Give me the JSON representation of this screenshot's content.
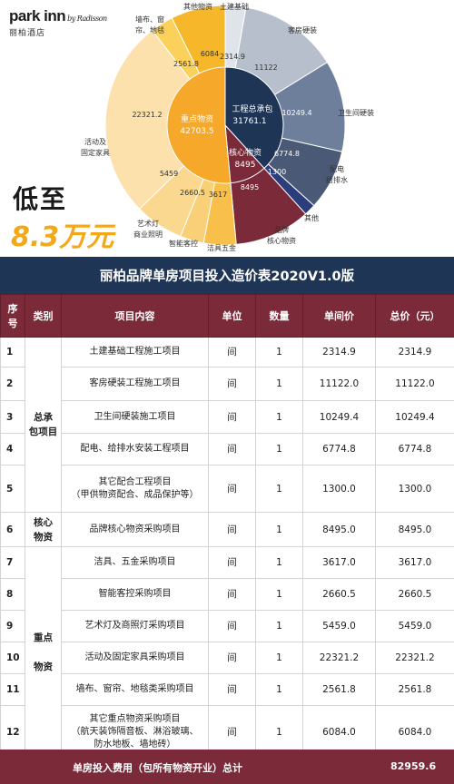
{
  "brand": {
    "logo_main": "park inn",
    "logo_sub": "by Radisson",
    "logo_cn": "丽柏酒店"
  },
  "promo": {
    "line1": "低至",
    "line2": "8.3万元"
  },
  "chart_data": {
    "type": "pie",
    "inner": [
      {
        "name": "工程总承包",
        "value": 31761.1,
        "color": "#1f3556"
      },
      {
        "name": "核心物资",
        "value": 8495,
        "color": "#7a2a39"
      },
      {
        "name": "重点物资",
        "value": 42703.5,
        "color": "#f6a82a"
      }
    ],
    "outer": [
      {
        "name": "土建基础",
        "value": 2314.9,
        "label": "2314.9",
        "color": "#dfe3ea"
      },
      {
        "name": "客房硬装",
        "value": 11122,
        "label": "11122",
        "color": "#b7bfcc"
      },
      {
        "name": "卫生间硬装",
        "value": 10249.4,
        "label": "10249.4",
        "color": "#6d7f9b"
      },
      {
        "name": "配电给排水",
        "value": 6774.8,
        "label": "6774.8",
        "color": "#4a5a76"
      },
      {
        "name": "其他",
        "value": 1300,
        "label": "1300",
        "color": "#2b3d7c"
      },
      {
        "name": "品牌核心物资",
        "value": 8495,
        "label": "8495",
        "color": "#7a2a39"
      },
      {
        "name": "洁具五金",
        "value": 3617,
        "label": "3617",
        "color": "#f8c04a"
      },
      {
        "name": "智能客控",
        "value": 2660.5,
        "label": "2660.5",
        "color": "#f9cf78"
      },
      {
        "name": "艺术灯商业照明",
        "value": 5459,
        "label": "5459",
        "color": "#fad88f"
      },
      {
        "name": "活动及固定家具",
        "value": 22321.2,
        "label": "22321.2",
        "color": "#fce1ad"
      },
      {
        "name": "墙布、窗帘、地毯",
        "value": 2561.8,
        "label": "2561.8",
        "color": "#fbd15c"
      },
      {
        "name": "其他物资",
        "value": 6084,
        "label": "6084",
        "color": "#f6b72a"
      }
    ],
    "labels": {
      "total_eng": "工程总承包",
      "total_eng_val": "31761.1",
      "core": "核心物资",
      "core_val": "8495",
      "key": "重点物资",
      "key_val": "42703.5",
      "cat_jichu": "土建基础",
      "cat_kefang": "客房硬装",
      "cat_wsj": "卫生间硬装",
      "cat_pd1": "配电",
      "cat_pd2": "给排水",
      "cat_qita": "其他",
      "cat_pp1": "品牌",
      "cat_pp2": "核心物资",
      "cat_jj": "洁具五金",
      "cat_zn": "智能客控",
      "cat_yd1": "艺术灯",
      "cat_yd2": "商业照明",
      "cat_jiaju1": "活动及",
      "cat_jiaju2": "固定家具",
      "cat_qb1": "墙布、窗",
      "cat_qb2": "帘、地毯",
      "cat_qtwz": "其他物资"
    }
  },
  "table": {
    "title": "丽柏品牌单房项目投入造价表2020V1.0版",
    "headers": {
      "no1": "序",
      "no2": "号",
      "category": "类别",
      "content": "项目内容",
      "unit": "单位",
      "qty": "数量",
      "price": "单间价",
      "total": "总价（元）"
    },
    "categories": {
      "c1a": "总承",
      "c1b": "包项目",
      "c2a": "核心",
      "c2b": "物资",
      "c3a": "重点",
      "c3b": "物资"
    },
    "rows": [
      {
        "no": "1",
        "item1": "土建基础工程施工项目",
        "unit": "间",
        "qty": "1",
        "price": "2314.9",
        "total": "2314.9"
      },
      {
        "no": "2",
        "item1": "客房硬装工程施工项目",
        "unit": "间",
        "qty": "1",
        "price": "11122.0",
        "total": "11122.0"
      },
      {
        "no": "3",
        "item1": "卫生间硬装施工项目",
        "unit": "间",
        "qty": "1",
        "price": "10249.4",
        "total": "10249.4"
      },
      {
        "no": "4",
        "item1": "配电、给排水安装工程项目",
        "unit": "间",
        "qty": "1",
        "price": "6774.8",
        "total": "6774.8"
      },
      {
        "no": "5",
        "item1": "其它配合工程项目",
        "item2": "（甲供物资配合、成品保护等）",
        "unit": "间",
        "qty": "1",
        "price": "1300.0",
        "total": "1300.0"
      },
      {
        "no": "6",
        "item1": "品牌核心物资采购项目",
        "unit": "间",
        "qty": "1",
        "price": "8495.0",
        "total": "8495.0"
      },
      {
        "no": "7",
        "item1": "洁具、五金采购项目",
        "unit": "间",
        "qty": "1",
        "price": "3617.0",
        "total": "3617.0"
      },
      {
        "no": "8",
        "item1": "智能客控采购项目",
        "unit": "间",
        "qty": "1",
        "price": "2660.5",
        "total": "2660.5"
      },
      {
        "no": "9",
        "item1": "艺术灯及商照灯采购项目",
        "unit": "间",
        "qty": "1",
        "price": "5459.0",
        "total": "5459.0"
      },
      {
        "no": "10",
        "item1": "活动及固定家具采购项目",
        "unit": "间",
        "qty": "1",
        "price": "22321.2",
        "total": "22321.2"
      },
      {
        "no": "11",
        "item1": "墙布、窗帘、地毯类采购项目",
        "unit": "间",
        "qty": "1",
        "price": "2561.8",
        "total": "2561.8"
      },
      {
        "no": "12",
        "item1": "其它重点物资采购项目",
        "item2": "（航天装饰隔音板、淋浴玻璃、",
        "item3": "防水地板、墙地砖）",
        "unit": "间",
        "qty": "1",
        "price": "6084.0",
        "total": "6084.0"
      }
    ],
    "footer": {
      "label": "单房投入费用（包所有物资开业）总计",
      "total": "82959.6"
    }
  }
}
